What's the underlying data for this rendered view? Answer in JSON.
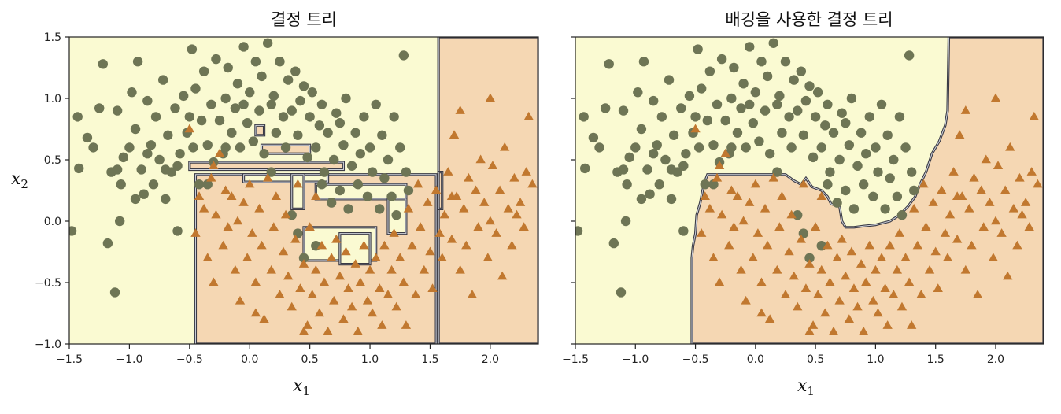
{
  "chart_data": [
    {
      "type": "scatter",
      "title": "결정 트리",
      "xlabel": "x",
      "xlabel_sub": "1",
      "ylabel": "x",
      "ylabel_sub": "2",
      "xlim": [
        -1.5,
        2.4
      ],
      "ylim": [
        -1.0,
        1.5
      ],
      "xticks": [
        "−1.5",
        "−1.0",
        "−0.5",
        "0.0",
        "0.5",
        "1.0",
        "1.5",
        "2.0"
      ],
      "yticks": [
        "−1.0",
        "−0.5",
        "0.0",
        "0.5",
        "1.0",
        "1.5"
      ],
      "region_colors": {
        "class0": "#fafad2",
        "class1": "#f5d7b3"
      },
      "boundary_color": "#3b3b46",
      "class1_region_rects": [
        [
          -0.45,
          -1.0,
          1.55,
          0.38
        ],
        [
          1.57,
          -1.0,
          2.4,
          1.5
        ],
        [
          1.57,
          0.1,
          1.6,
          0.4
        ]
      ],
      "class0_in_class1_rects": [
        [
          -0.05,
          0.32,
          0.65,
          0.38
        ],
        [
          0.35,
          0.1,
          0.45,
          0.38
        ],
        [
          0.55,
          0.18,
          1.3,
          0.3
        ],
        [
          0.45,
          -0.32,
          1.05,
          -0.05
        ],
        [
          0.75,
          -0.35,
          1.0,
          -0.1
        ],
        [
          1.15,
          -0.1,
          1.3,
          0.18
        ]
      ],
      "class1_in_class0_rects": [
        [
          -0.5,
          0.42,
          0.78,
          0.48
        ],
        [
          0.1,
          0.55,
          0.5,
          0.62
        ],
        [
          0.05,
          0.7,
          0.12,
          0.78
        ]
      ]
    },
    {
      "type": "scatter",
      "title": "배깅을 사용한 결정 트리",
      "xlabel": "x",
      "xlabel_sub": "1",
      "xlim": [
        -1.5,
        2.4
      ],
      "ylim": [
        -1.0,
        1.5
      ],
      "xticks": [
        "−1.5",
        "−1.0",
        "−0.5",
        "0.0",
        "0.5",
        "1.0",
        "1.5",
        "2.0"
      ],
      "region_colors": {
        "class0": "#fafad2",
        "class1": "#f5d7b3"
      },
      "boundary_color": "#3b3b46",
      "class1_region_polygon": [
        [
          -0.53,
          -1.0
        ],
        [
          -0.53,
          -0.3
        ],
        [
          -0.52,
          -0.2
        ],
        [
          -0.5,
          -0.1
        ],
        [
          -0.49,
          0.05
        ],
        [
          -0.46,
          0.15
        ],
        [
          -0.43,
          0.3
        ],
        [
          -0.4,
          0.38
        ],
        [
          0.25,
          0.38
        ],
        [
          0.32,
          0.33
        ],
        [
          0.38,
          0.3
        ],
        [
          0.42,
          0.35
        ],
        [
          0.47,
          0.28
        ],
        [
          0.55,
          0.25
        ],
        [
          0.6,
          0.2
        ],
        [
          0.63,
          0.14
        ],
        [
          0.7,
          0.12
        ],
        [
          0.72,
          0.0
        ],
        [
          0.75,
          -0.05
        ],
        [
          0.82,
          -0.05
        ],
        [
          0.9,
          -0.04
        ],
        [
          1.0,
          -0.03
        ],
        [
          1.12,
          0.0
        ],
        [
          1.2,
          0.05
        ],
        [
          1.27,
          0.12
        ],
        [
          1.33,
          0.2
        ],
        [
          1.37,
          0.3
        ],
        [
          1.42,
          0.4
        ],
        [
          1.47,
          0.55
        ],
        [
          1.53,
          0.65
        ],
        [
          1.58,
          0.78
        ],
        [
          1.6,
          0.9
        ],
        [
          1.61,
          1.5
        ],
        [
          2.4,
          1.5
        ],
        [
          2.4,
          -1.0
        ]
      ]
    }
  ],
  "scatter_points": {
    "class0_color": "#6e7555",
    "class1_color": "#c1782f",
    "class0_marker": "circle",
    "class1_marker": "triangle",
    "class0": [
      [
        -1.48,
        -0.08
      ],
      [
        -1.43,
        0.85
      ],
      [
        -1.42,
        0.43
      ],
      [
        -1.35,
        0.68
      ],
      [
        -1.3,
        0.6
      ],
      [
        -1.22,
        1.28
      ],
      [
        -1.18,
        -0.18
      ],
      [
        -1.15,
        0.4
      ],
      [
        -1.12,
        -0.58
      ],
      [
        -1.1,
        0.9
      ],
      [
        -1.08,
        0.0
      ],
      [
        -1.07,
        0.3
      ],
      [
        -1.05,
        0.52
      ],
      [
        -1.0,
        0.6
      ],
      [
        -0.98,
        1.05
      ],
      [
        -0.95,
        0.75
      ],
      [
        -0.93,
        1.3
      ],
      [
        -0.9,
        0.42
      ],
      [
        -0.88,
        0.22
      ],
      [
        -0.85,
        0.98
      ],
      [
        -0.82,
        0.62
      ],
      [
        -0.8,
        0.3
      ],
      [
        -0.78,
        0.85
      ],
      [
        -0.75,
        0.5
      ],
      [
        -0.72,
        1.15
      ],
      [
        -0.7,
        0.18
      ],
      [
        -0.68,
        0.7
      ],
      [
        -0.65,
        0.4
      ],
      [
        -0.62,
        0.92
      ],
      [
        -0.6,
        -0.08
      ],
      [
        -0.58,
        0.55
      ],
      [
        -0.55,
        1.02
      ],
      [
        -0.52,
        0.72
      ],
      [
        -0.5,
        0.85
      ],
      [
        -0.48,
        1.4
      ],
      [
        -0.47,
        0.6
      ],
      [
        -0.45,
        1.08
      ],
      [
        -0.42,
        0.3
      ],
      [
        -0.4,
        0.82
      ],
      [
        -0.38,
        1.22
      ],
      [
        -0.35,
        0.62
      ],
      [
        -0.32,
        0.95
      ],
      [
        -0.3,
        0.48
      ],
      [
        -0.28,
        1.32
      ],
      [
        -0.25,
        0.82
      ],
      [
        -0.22,
        0.55
      ],
      [
        -0.2,
        1.0
      ],
      [
        -0.18,
        1.25
      ],
      [
        -0.15,
        0.72
      ],
      [
        -0.12,
        0.92
      ],
      [
        -0.1,
        1.12
      ],
      [
        -0.08,
        0.6
      ],
      [
        -0.05,
        1.42
      ],
      [
        -0.02,
        0.8
      ],
      [
        0.0,
        1.05
      ],
      [
        0.03,
        0.65
      ],
      [
        0.05,
        1.3
      ],
      [
        0.08,
        0.9
      ],
      [
        0.1,
        1.18
      ],
      [
        0.12,
        0.55
      ],
      [
        0.15,
        1.45
      ],
      [
        0.18,
        0.95
      ],
      [
        0.2,
        1.02
      ],
      [
        0.22,
        0.72
      ],
      [
        0.25,
        1.3
      ],
      [
        0.28,
        0.85
      ],
      [
        0.3,
        0.6
      ],
      [
        0.32,
        1.15
      ],
      [
        0.35,
        0.9
      ],
      [
        0.38,
        1.22
      ],
      [
        0.4,
        0.7
      ],
      [
        0.42,
        0.98
      ],
      [
        0.45,
        1.1
      ],
      [
        0.48,
        0.52
      ],
      [
        0.5,
        0.85
      ],
      [
        0.52,
        1.05
      ],
      [
        0.55,
        0.6
      ],
      [
        0.58,
        0.78
      ],
      [
        0.6,
        0.95
      ],
      [
        0.62,
        0.4
      ],
      [
        0.65,
        0.72
      ],
      [
        0.68,
        0.15
      ],
      [
        0.7,
        0.5
      ],
      [
        0.72,
        0.88
      ],
      [
        0.75,
        0.25
      ],
      [
        0.78,
        0.62
      ],
      [
        0.8,
        1.0
      ],
      [
        0.82,
        0.1
      ],
      [
        0.85,
        0.45
      ],
      [
        0.88,
        0.72
      ],
      [
        0.9,
        0.3
      ],
      [
        0.92,
        0.55
      ],
      [
        0.95,
        0.85
      ],
      [
        0.98,
        0.2
      ],
      [
        1.0,
        0.6
      ],
      [
        1.02,
        0.4
      ],
      [
        1.05,
        0.95
      ],
      [
        1.08,
        0.1
      ],
      [
        1.1,
        0.7
      ],
      [
        1.12,
        0.35
      ],
      [
        1.15,
        0.5
      ],
      [
        1.18,
        0.2
      ],
      [
        1.2,
        0.85
      ],
      [
        1.22,
        0.05
      ],
      [
        1.25,
        0.6
      ],
      [
        1.28,
        1.35
      ],
      [
        1.3,
        0.4
      ],
      [
        1.32,
        0.25
      ],
      [
        0.4,
        -0.1
      ],
      [
        0.45,
        -0.3
      ],
      [
        0.55,
        -0.2
      ],
      [
        0.35,
        0.05
      ],
      [
        0.6,
        0.3
      ],
      [
        0.75,
        0.8
      ],
      [
        -0.2,
        0.6
      ],
      [
        -0.05,
        0.95
      ],
      [
        0.18,
        0.4
      ],
      [
        -0.35,
        0.3
      ],
      [
        -0.6,
        0.45
      ],
      [
        -1.1,
        0.42
      ],
      [
        -0.95,
        0.18
      ],
      [
        -0.7,
        0.42
      ],
      [
        -1.25,
        0.92
      ],
      [
        -0.85,
        0.55
      ]
    ],
    "class1": [
      [
        -0.45,
        -0.1
      ],
      [
        -0.42,
        0.2
      ],
      [
        -0.38,
        0.1
      ],
      [
        -0.35,
        -0.3
      ],
      [
        -0.32,
        0.35
      ],
      [
        -0.3,
        -0.5
      ],
      [
        -0.28,
        0.05
      ],
      [
        -0.25,
        0.55
      ],
      [
        -0.22,
        -0.2
      ],
      [
        -0.18,
        -0.05
      ],
      [
        -0.15,
        0.2
      ],
      [
        -0.12,
        -0.4
      ],
      [
        -0.1,
        0.0
      ],
      [
        -0.08,
        -0.65
      ],
      [
        -0.05,
        0.15
      ],
      [
        -0.02,
        -0.3
      ],
      [
        0.0,
        0.3
      ],
      [
        0.02,
        -0.1
      ],
      [
        0.05,
        -0.5
      ],
      [
        0.08,
        0.1
      ],
      [
        0.1,
        -0.2
      ],
      [
        0.12,
        -0.8
      ],
      [
        0.15,
        0.35
      ],
      [
        0.18,
        -0.4
      ],
      [
        0.2,
        -0.05
      ],
      [
        0.22,
        0.2
      ],
      [
        0.25,
        -0.6
      ],
      [
        0.28,
        -0.25
      ],
      [
        0.3,
        0.05
      ],
      [
        0.32,
        -0.45
      ],
      [
        0.35,
        -0.7
      ],
      [
        0.38,
        -0.15
      ],
      [
        0.4,
        0.3
      ],
      [
        0.42,
        -0.55
      ],
      [
        0.45,
        -0.35
      ],
      [
        0.48,
        -0.85
      ],
      [
        0.5,
        -0.05
      ],
      [
        0.52,
        -0.6
      ],
      [
        0.55,
        -0.4
      ],
      [
        0.58,
        -0.75
      ],
      [
        0.6,
        -0.2
      ],
      [
        0.62,
        -0.5
      ],
      [
        0.65,
        -0.9
      ],
      [
        0.68,
        -0.3
      ],
      [
        0.7,
        -0.65
      ],
      [
        0.72,
        -0.15
      ],
      [
        0.75,
        -0.45
      ],
      [
        0.78,
        -0.8
      ],
      [
        0.8,
        -0.25
      ],
      [
        0.82,
        -0.55
      ],
      [
        0.85,
        -0.7
      ],
      [
        0.88,
        -0.35
      ],
      [
        0.9,
        -0.9
      ],
      [
        0.92,
        -0.5
      ],
      [
        0.95,
        -0.2
      ],
      [
        0.98,
        -0.65
      ],
      [
        1.0,
        -0.4
      ],
      [
        1.02,
        -0.75
      ],
      [
        1.05,
        -0.3
      ],
      [
        1.08,
        -0.55
      ],
      [
        1.1,
        -0.85
      ],
      [
        1.12,
        -0.2
      ],
      [
        1.15,
        -0.6
      ],
      [
        1.18,
        -0.4
      ],
      [
        1.2,
        -0.1
      ],
      [
        1.22,
        -0.7
      ],
      [
        1.25,
        -0.3
      ],
      [
        1.28,
        -0.5
      ],
      [
        1.3,
        -0.85
      ],
      [
        1.32,
        0.1
      ],
      [
        1.35,
        -0.2
      ],
      [
        1.38,
        -0.6
      ],
      [
        1.4,
        0.3
      ],
      [
        1.42,
        -0.05
      ],
      [
        1.45,
        -0.4
      ],
      [
        1.48,
        0.15
      ],
      [
        1.5,
        -0.25
      ],
      [
        1.52,
        -0.55
      ],
      [
        1.55,
        0.25
      ],
      [
        1.58,
        -0.1
      ],
      [
        1.6,
        -0.3
      ],
      [
        1.62,
        0.05
      ],
      [
        1.65,
        0.4
      ],
      [
        1.68,
        -0.15
      ],
      [
        1.7,
        0.7
      ],
      [
        1.72,
        0.2
      ],
      [
        1.75,
        -0.4
      ],
      [
        1.78,
        0.1
      ],
      [
        1.8,
        -0.2
      ],
      [
        1.82,
        0.35
      ],
      [
        1.85,
        -0.6
      ],
      [
        1.88,
        0.25
      ],
      [
        1.9,
        -0.05
      ],
      [
        1.92,
        0.5
      ],
      [
        1.95,
        0.15
      ],
      [
        1.98,
        -0.3
      ],
      [
        2.0,
        0.0
      ],
      [
        2.02,
        0.45
      ],
      [
        2.05,
        -0.1
      ],
      [
        2.08,
        0.25
      ],
      [
        2.1,
        -0.45
      ],
      [
        2.12,
        0.6
      ],
      [
        2.15,
        0.1
      ],
      [
        2.18,
        -0.2
      ],
      [
        2.2,
        0.35
      ],
      [
        2.22,
        0.05
      ],
      [
        2.25,
        0.15
      ],
      [
        2.28,
        -0.05
      ],
      [
        2.3,
        0.4
      ],
      [
        2.32,
        0.85
      ],
      [
        2.35,
        0.3
      ],
      [
        2.0,
        1.0
      ],
      [
        1.75,
        0.9
      ],
      [
        1.68,
        0.2
      ],
      [
        -0.3,
        0.45
      ],
      [
        -0.2,
        0.25
      ],
      [
        0.55,
        0.2
      ],
      [
        -0.5,
        0.75
      ],
      [
        0.05,
        -0.75
      ],
      [
        0.45,
        -0.9
      ]
    ]
  }
}
